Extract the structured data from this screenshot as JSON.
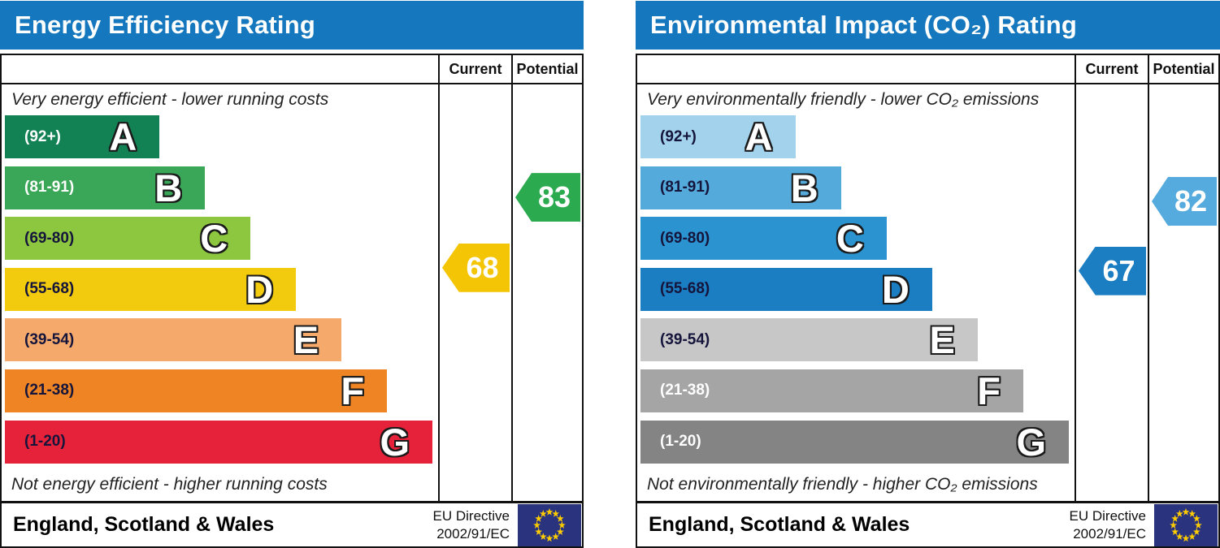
{
  "panels": [
    {
      "title": "Energy Efficiency Rating",
      "header_color": "#1577bd",
      "col_current": "Current",
      "col_potential": "Potential",
      "top_note": "Very energy efficient - lower running costs",
      "bottom_note": "Not energy efficient - higher running costs",
      "bands": [
        {
          "letter": "A",
          "range_label": "(92+)",
          "min": 92,
          "max": 100,
          "color": "#128154",
          "label_color": "#ffffff"
        },
        {
          "letter": "B",
          "range_label": "(81-91)",
          "min": 81,
          "max": 91,
          "color": "#3aa657",
          "label_color": "#ffffff"
        },
        {
          "letter": "C",
          "range_label": "(69-80)",
          "min": 69,
          "max": 80,
          "color": "#8dc63f",
          "label_color": "#15153c"
        },
        {
          "letter": "D",
          "range_label": "(55-68)",
          "min": 55,
          "max": 68,
          "color": "#f2cb0e",
          "label_color": "#15153c"
        },
        {
          "letter": "E",
          "range_label": "(39-54)",
          "min": 39,
          "max": 54,
          "color": "#f5aa6b",
          "label_color": "#15153c"
        },
        {
          "letter": "F",
          "range_label": "(21-38)",
          "min": 21,
          "max": 38,
          "color": "#ee8423",
          "label_color": "#15153c"
        },
        {
          "letter": "G",
          "range_label": "(1-20)",
          "min": 1,
          "max": 20,
          "color": "#e52239",
          "label_color": "#15153c"
        }
      ],
      "current": {
        "value": 68,
        "color": "#f4c504"
      },
      "potential": {
        "value": 83,
        "color": "#2caa4f"
      },
      "footer_region": "England, Scotland & Wales",
      "directive_line1": "EU Directive",
      "directive_line2": "2002/91/EC",
      "flag_bg": "#29337e",
      "flag_star_color": "#ffcc00"
    },
    {
      "title": "Environmental Impact (CO₂) Rating",
      "header_color": "#1577bd",
      "col_current": "Current",
      "col_potential": "Potential",
      "top_note": "Very environmentally friendly - lower CO₂ emissions",
      "bottom_note": "Not environmentally friendly - higher CO₂ emissions",
      "bands": [
        {
          "letter": "A",
          "range_label": "(92+)",
          "min": 92,
          "max": 100,
          "color": "#a3d2ec",
          "label_color": "#15153c"
        },
        {
          "letter": "B",
          "range_label": "(81-91)",
          "min": 81,
          "max": 91,
          "color": "#54aadb",
          "label_color": "#15153c"
        },
        {
          "letter": "C",
          "range_label": "(69-80)",
          "min": 69,
          "max": 80,
          "color": "#2b93cf",
          "label_color": "#15153c"
        },
        {
          "letter": "D",
          "range_label": "(55-68)",
          "min": 55,
          "max": 68,
          "color": "#1b7dc2",
          "label_color": "#15153c"
        },
        {
          "letter": "E",
          "range_label": "(39-54)",
          "min": 39,
          "max": 54,
          "color": "#c7c7c7",
          "label_color": "#15153c"
        },
        {
          "letter": "F",
          "range_label": "(21-38)",
          "min": 21,
          "max": 38,
          "color": "#a5a5a5",
          "label_color": "#ffffff"
        },
        {
          "letter": "G",
          "range_label": "(1-20)",
          "min": 1,
          "max": 20,
          "color": "#848484",
          "label_color": "#ffffff"
        }
      ],
      "current": {
        "value": 67,
        "color": "#1b7dc2"
      },
      "potential": {
        "value": 82,
        "color": "#55abdd"
      },
      "footer_region": "England, Scotland & Wales",
      "directive_line1": "EU Directive",
      "directive_line2": "2002/91/EC",
      "flag_bg": "#29337e",
      "flag_star_color": "#ffcc00"
    }
  ],
  "chart_data": [
    {
      "type": "bar",
      "orientation": "horizontal",
      "title": "Energy Efficiency Rating",
      "categories": [
        "A (92+)",
        "B (81-91)",
        "C (69-80)",
        "D (55-68)",
        "E (39-54)",
        "F (21-38)",
        "G (1-20)"
      ],
      "values": [
        35.7,
        46.2,
        56.7,
        67.2,
        77.7,
        88.2,
        98.7
      ],
      "value_unit": "percent-of-axis (visual band length)",
      "markers": {
        "current": 68,
        "current_band": "D",
        "potential": 83,
        "potential_band": "B"
      },
      "annotations": [
        "Very energy efficient - lower running costs",
        "Not energy efficient - higher running costs"
      ],
      "legend_position": "none",
      "footer": "England, Scotland & Wales | EU Directive 2002/91/EC"
    },
    {
      "type": "bar",
      "orientation": "horizontal",
      "title": "Environmental Impact (CO₂) Rating",
      "categories": [
        "A (92+)",
        "B (81-91)",
        "C (69-80)",
        "D (55-68)",
        "E (39-54)",
        "F (21-38)",
        "G (1-20)"
      ],
      "values": [
        35.7,
        46.2,
        56.7,
        67.2,
        77.7,
        88.2,
        98.7
      ],
      "value_unit": "percent-of-axis (visual band length)",
      "markers": {
        "current": 67,
        "current_band": "D",
        "potential": 82,
        "potential_band": "B"
      },
      "annotations": [
        "Very environmentally friendly - lower CO₂ emissions",
        "Not environmentally friendly - higher CO₂ emissions"
      ],
      "legend_position": "none",
      "footer": "England, Scotland & Wales | EU Directive 2002/91/EC"
    }
  ]
}
